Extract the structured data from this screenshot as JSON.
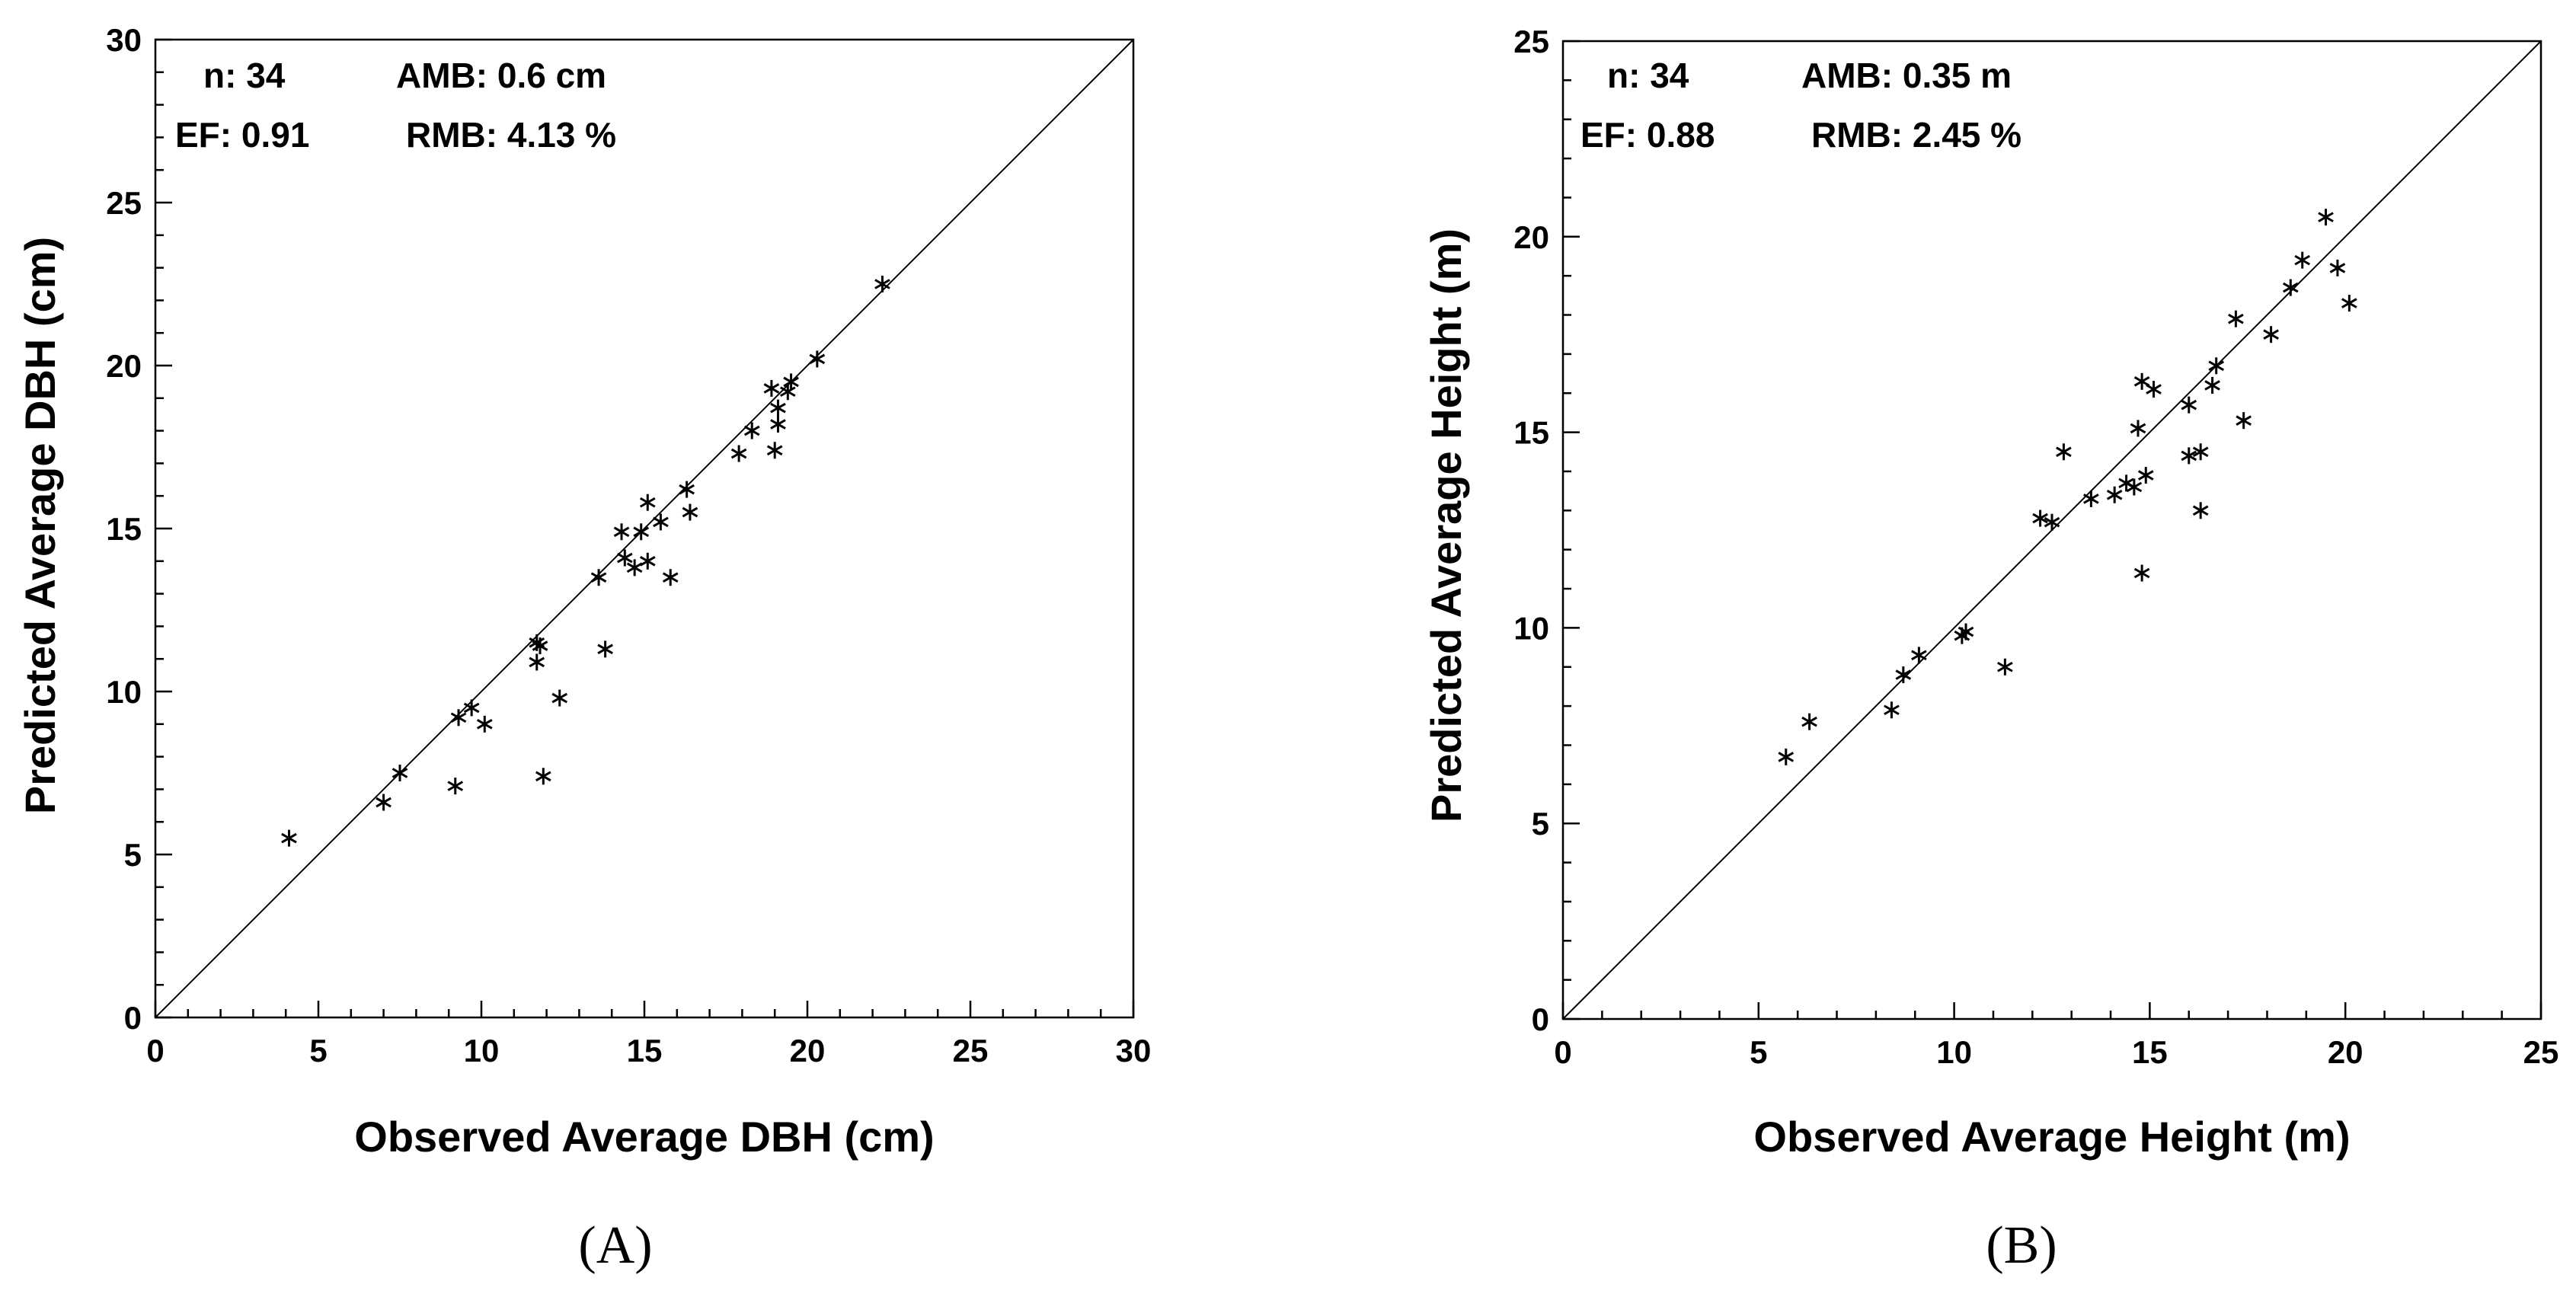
{
  "chart_data": [
    {
      "type": "scatter",
      "panel_label": "(A)",
      "xlabel": "Observed Average DBH (cm)",
      "ylabel": "Predicted Average DBH (cm)",
      "xlim": [
        0,
        30
      ],
      "ylim": [
        0,
        30
      ],
      "ticks": [
        0,
        5,
        10,
        15,
        20,
        25,
        30
      ],
      "stats": {
        "n": "n: 34",
        "amb": "AMB: 0.6 cm",
        "ef": "EF: 0.91",
        "rmb": "RMB: 4.13 %"
      },
      "reference_line": "1:1",
      "points": [
        [
          4.1,
          5.5
        ],
        [
          7.0,
          6.6
        ],
        [
          7.5,
          7.5
        ],
        [
          9.2,
          7.1
        ],
        [
          9.3,
          9.2
        ],
        [
          9.7,
          9.5
        ],
        [
          10.1,
          9.0
        ],
        [
          11.7,
          11.5
        ],
        [
          11.7,
          10.9
        ],
        [
          11.8,
          11.4
        ],
        [
          11.9,
          7.4
        ],
        [
          12.4,
          9.8
        ],
        [
          13.6,
          13.5
        ],
        [
          13.8,
          11.3
        ],
        [
          14.3,
          14.9
        ],
        [
          14.4,
          14.1
        ],
        [
          14.7,
          13.8
        ],
        [
          14.9,
          14.9
        ],
        [
          15.1,
          15.8
        ],
        [
          15.1,
          14.0
        ],
        [
          15.5,
          15.2
        ],
        [
          15.8,
          13.5
        ],
        [
          16.3,
          16.2
        ],
        [
          16.4,
          15.5
        ],
        [
          17.9,
          17.3
        ],
        [
          18.3,
          18.0
        ],
        [
          18.9,
          19.3
        ],
        [
          19.0,
          17.4
        ],
        [
          19.1,
          18.2
        ],
        [
          19.1,
          18.7
        ],
        [
          19.4,
          19.2
        ],
        [
          19.5,
          19.5
        ],
        [
          20.3,
          20.2
        ],
        [
          22.3,
          22.5
        ]
      ]
    },
    {
      "type": "scatter",
      "panel_label": "(B)",
      "xlabel": "Observed Average Height (m)",
      "ylabel": "Predicted Average Height (m)",
      "xlim": [
        0,
        25
      ],
      "ylim": [
        0,
        25
      ],
      "ticks": [
        0,
        5,
        10,
        15,
        20,
        25
      ],
      "stats": {
        "n": "n: 34",
        "amb": "AMB: 0.35 m",
        "ef": "EF: 0.88",
        "rmb": "RMB: 2.45 %"
      },
      "reference_line": "1:1",
      "points": [
        [
          5.7,
          6.7
        ],
        [
          6.3,
          7.6
        ],
        [
          8.4,
          7.9
        ],
        [
          8.7,
          8.8
        ],
        [
          9.1,
          9.3
        ],
        [
          10.2,
          9.8
        ],
        [
          10.3,
          9.9
        ],
        [
          11.3,
          9.0
        ],
        [
          12.2,
          12.8
        ],
        [
          12.5,
          12.7
        ],
        [
          12.8,
          14.5
        ],
        [
          13.5,
          13.3
        ],
        [
          14.1,
          13.4
        ],
        [
          14.4,
          13.7
        ],
        [
          14.6,
          13.6
        ],
        [
          14.7,
          15.1
        ],
        [
          14.8,
          16.3
        ],
        [
          14.8,
          11.4
        ],
        [
          14.9,
          13.9
        ],
        [
          15.1,
          16.1
        ],
        [
          16.0,
          15.7
        ],
        [
          16.0,
          14.4
        ],
        [
          16.3,
          14.5
        ],
        [
          16.3,
          13.0
        ],
        [
          16.6,
          16.2
        ],
        [
          16.7,
          16.7
        ],
        [
          17.2,
          17.9
        ],
        [
          17.4,
          15.3
        ],
        [
          18.1,
          17.5
        ],
        [
          18.6,
          18.7
        ],
        [
          18.9,
          19.4
        ],
        [
          19.5,
          20.5
        ],
        [
          19.8,
          19.2
        ],
        [
          20.1,
          18.3
        ]
      ]
    }
  ]
}
